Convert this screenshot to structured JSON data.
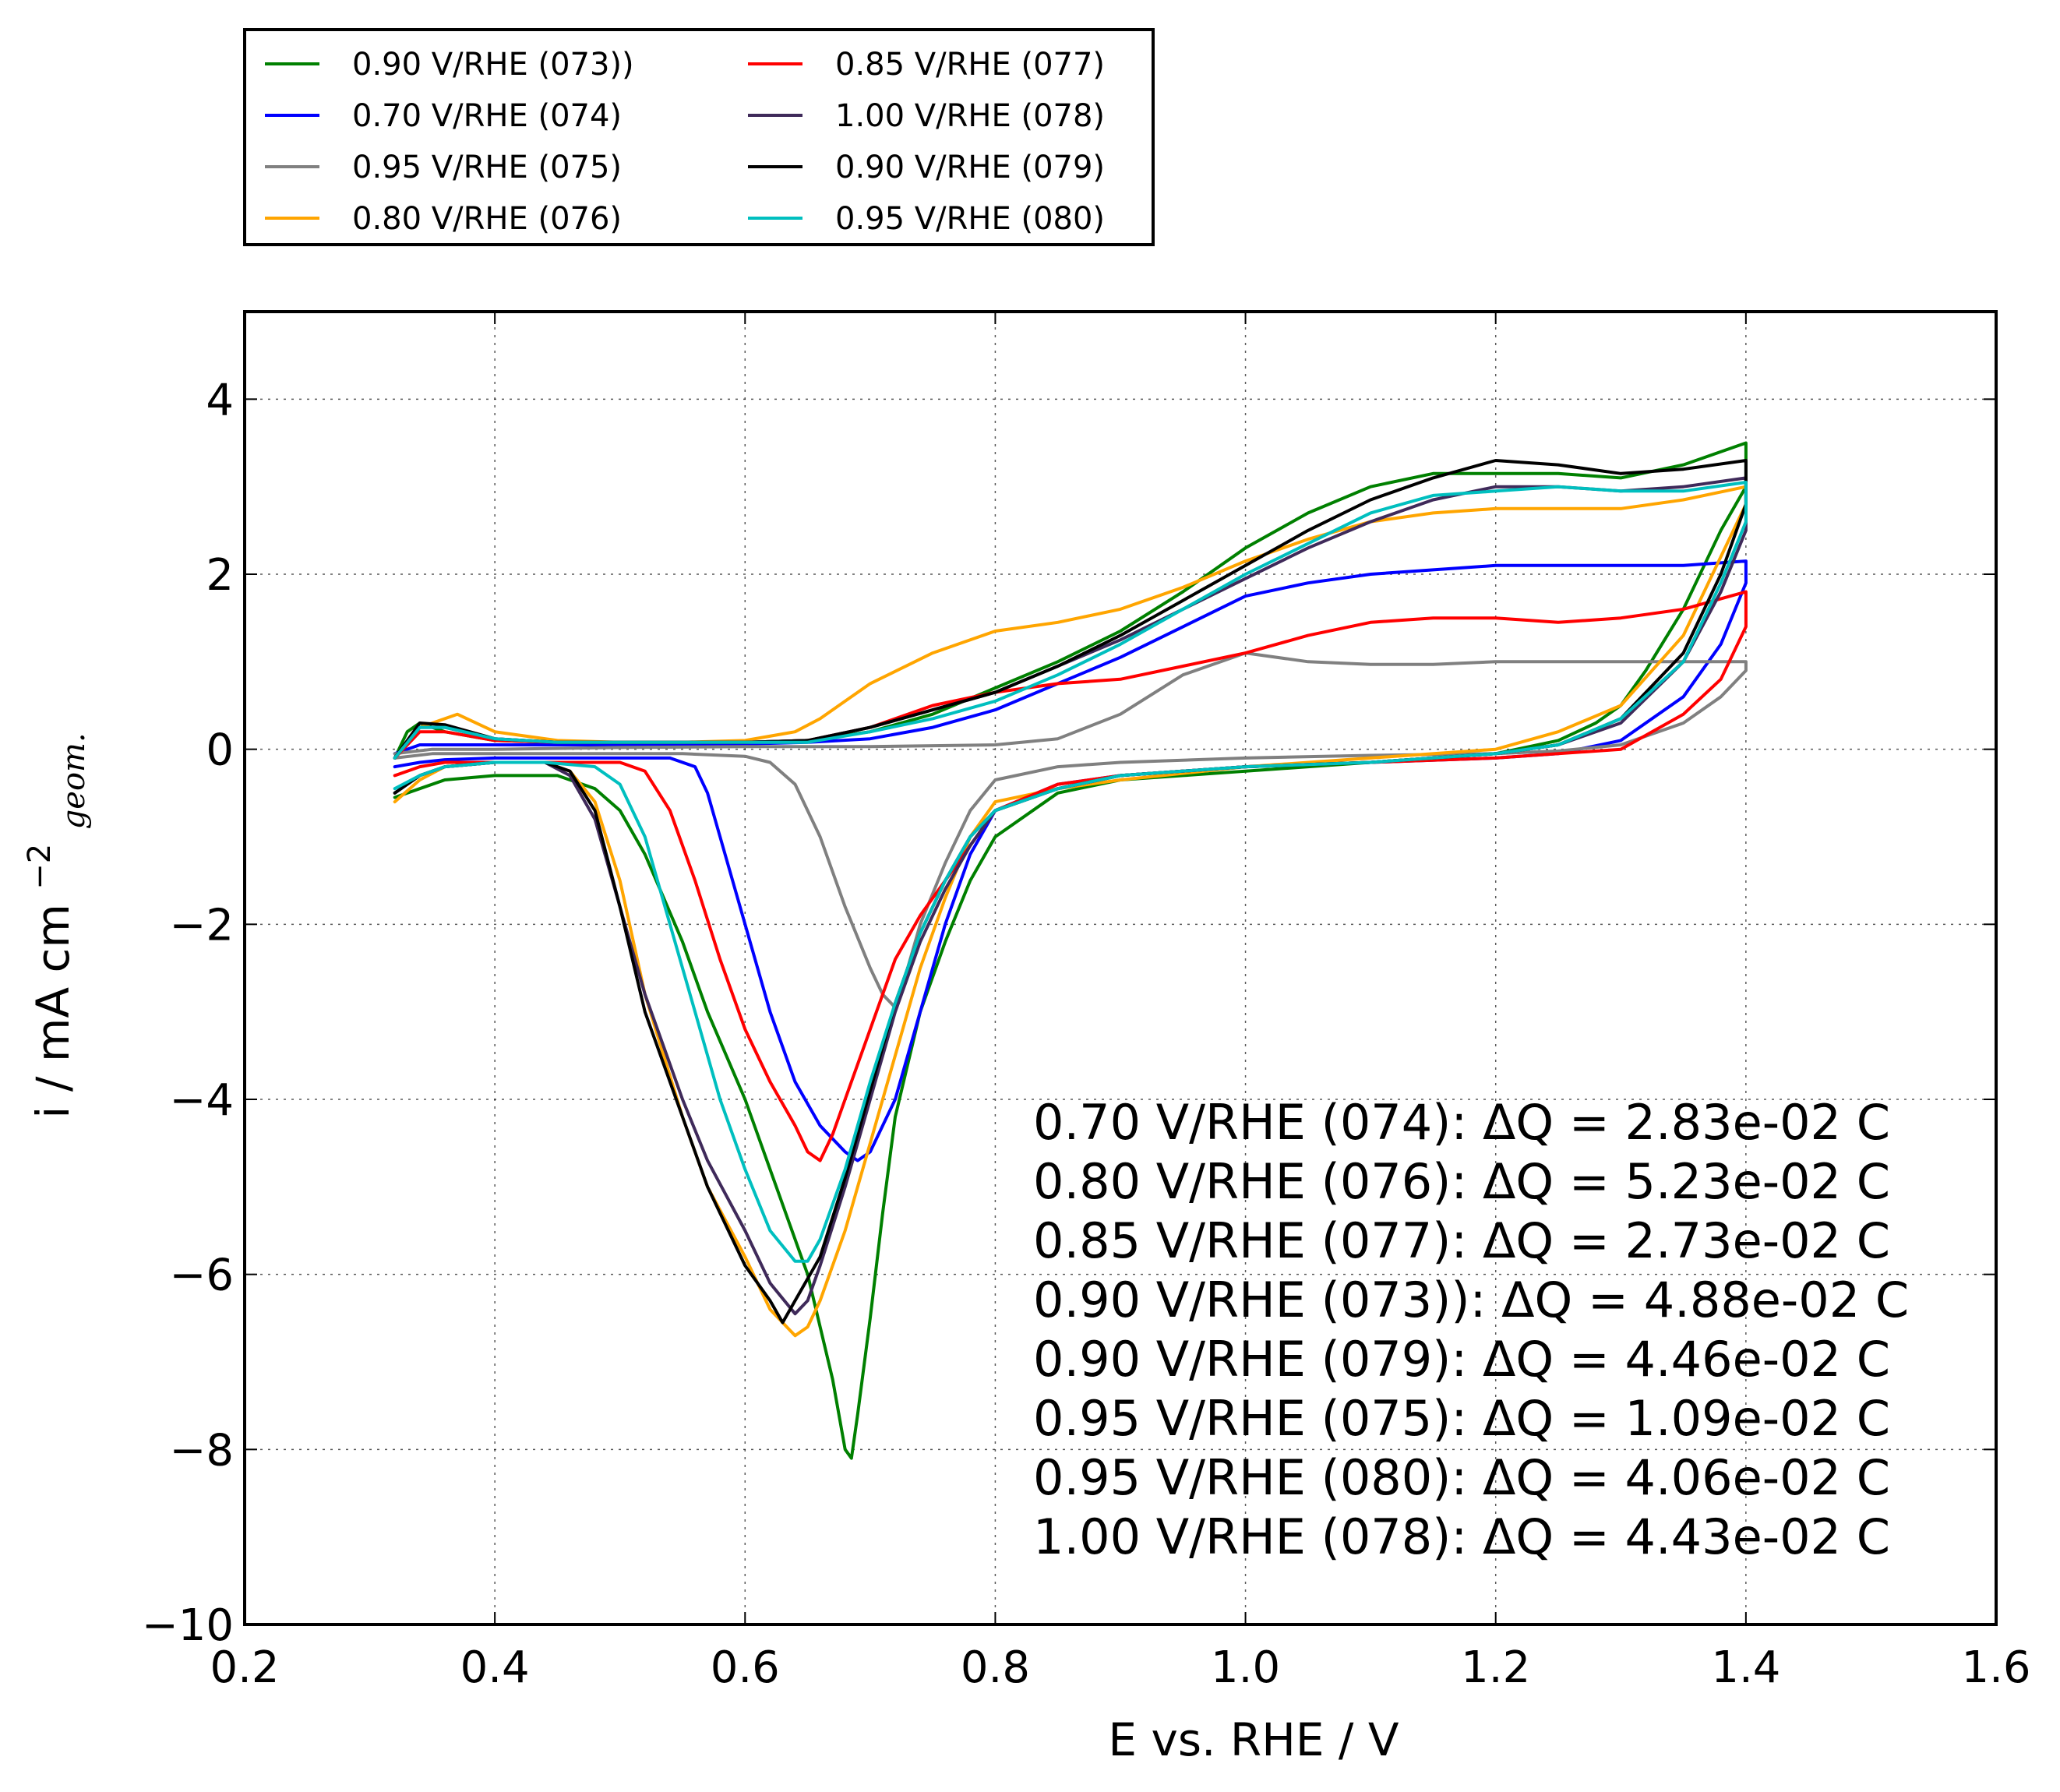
{
  "chart_data": {
    "type": "line",
    "xlabel": "E vs. RHE / V",
    "ylabel_main": "i / mA cm",
    "ylabel_exp": "−2",
    "ylabel_sub": "geom.",
    "xlim": [
      0.2,
      1.6
    ],
    "ylim": [
      -10,
      5
    ],
    "xticks": [
      0.2,
      0.4,
      0.6,
      0.8,
      1.0,
      1.2,
      1.4,
      1.6
    ],
    "xtick_labels": [
      "0.2",
      "0.4",
      "0.6",
      "0.8",
      "1.0",
      "1.2",
      "1.4",
      "1.6"
    ],
    "yticks": [
      -10,
      -8,
      -6,
      -4,
      -2,
      0,
      2,
      4
    ],
    "ytick_labels": [
      "−10",
      "−8",
      "−6",
      "−4",
      "−2",
      "0",
      "2",
      "4"
    ],
    "grid": true,
    "legend_position": "top-left, above plot",
    "series": [
      {
        "name": "0.90 V/RHE (073))",
        "color": "#008000",
        "x": [
          0.32,
          0.33,
          0.34,
          0.36,
          0.4,
          0.45,
          0.48,
          0.5,
          0.52,
          0.55,
          0.58,
          0.6,
          0.65,
          0.7,
          0.75,
          0.8,
          0.85,
          0.9,
          0.95,
          1.0,
          1.05,
          1.1,
          1.15,
          1.2,
          1.25,
          1.3,
          1.35,
          1.4,
          1.4,
          1.38,
          1.35,
          1.32,
          1.3,
          1.28,
          1.25,
          1.2,
          1.15,
          1.1,
          1.05,
          1.0,
          0.95,
          0.9,
          0.85,
          0.8,
          0.78,
          0.76,
          0.74,
          0.72,
          0.71,
          0.7,
          0.69,
          0.685,
          0.68,
          0.67,
          0.65,
          0.62,
          0.6,
          0.57,
          0.55,
          0.52,
          0.5,
          0.48,
          0.45,
          0.4,
          0.36,
          0.34,
          0.32
        ],
        "y": [
          -0.1,
          0.2,
          0.3,
          0.2,
          0.1,
          0.08,
          0.08,
          0.08,
          0.08,
          0.08,
          0.08,
          0.08,
          0.1,
          0.2,
          0.4,
          0.7,
          1.0,
          1.35,
          1.8,
          2.3,
          2.7,
          3.0,
          3.15,
          3.15,
          3.15,
          3.1,
          3.25,
          3.5,
          3.0,
          2.5,
          1.6,
          0.9,
          0.5,
          0.3,
          0.1,
          -0.05,
          -0.1,
          -0.15,
          -0.2,
          -0.25,
          -0.3,
          -0.35,
          -0.5,
          -1.0,
          -1.5,
          -2.2,
          -3.0,
          -4.2,
          -5.3,
          -6.5,
          -7.6,
          -8.1,
          -8.0,
          -7.2,
          -6.0,
          -4.8,
          -4.0,
          -3.0,
          -2.2,
          -1.2,
          -0.7,
          -0.45,
          -0.3,
          -0.3,
          -0.35,
          -0.45,
          -0.55
        ]
      },
      {
        "name": "0.70 V/RHE (074)",
        "color": "#0000ff",
        "x": [
          0.32,
          0.34,
          0.36,
          0.4,
          0.45,
          0.5,
          0.55,
          0.6,
          0.65,
          0.7,
          0.75,
          0.8,
          0.85,
          0.9,
          0.95,
          1.0,
          1.05,
          1.1,
          1.15,
          1.2,
          1.25,
          1.3,
          1.35,
          1.4,
          1.4,
          1.38,
          1.35,
          1.3,
          1.25,
          1.2,
          1.1,
          1.0,
          0.9,
          0.85,
          0.8,
          0.78,
          0.76,
          0.74,
          0.72,
          0.7,
          0.69,
          0.68,
          0.66,
          0.64,
          0.62,
          0.6,
          0.58,
          0.57,
          0.56,
          0.54,
          0.5,
          0.45,
          0.4,
          0.36,
          0.34,
          0.32
        ],
        "y": [
          -0.05,
          0.05,
          0.05,
          0.05,
          0.05,
          0.05,
          0.05,
          0.06,
          0.08,
          0.12,
          0.25,
          0.45,
          0.75,
          1.05,
          1.4,
          1.75,
          1.9,
          2.0,
          2.05,
          2.1,
          2.1,
          2.1,
          2.1,
          2.15,
          1.9,
          1.2,
          0.6,
          0.1,
          -0.05,
          -0.1,
          -0.15,
          -0.2,
          -0.3,
          -0.4,
          -0.7,
          -1.2,
          -2.0,
          -3.0,
          -4.0,
          -4.6,
          -4.7,
          -4.6,
          -4.3,
          -3.8,
          -3.0,
          -2.0,
          -1.0,
          -0.5,
          -0.2,
          -0.1,
          -0.1,
          -0.1,
          -0.1,
          -0.12,
          -0.15,
          -0.2
        ]
      },
      {
        "name": "0.95 V/RHE (075)",
        "color": "#808080",
        "x": [
          0.32,
          0.35,
          0.4,
          0.5,
          0.6,
          0.7,
          0.8,
          0.85,
          0.9,
          0.95,
          1.0,
          1.05,
          1.1,
          1.15,
          1.2,
          1.25,
          1.3,
          1.35,
          1.4,
          1.4,
          1.38,
          1.35,
          1.3,
          1.25,
          1.2,
          1.1,
          1.0,
          0.9,
          0.85,
          0.8,
          0.78,
          0.76,
          0.74,
          0.73,
          0.72,
          0.71,
          0.7,
          0.68,
          0.66,
          0.64,
          0.62,
          0.6,
          0.55,
          0.5,
          0.45,
          0.4,
          0.35,
          0.32
        ],
        "y": [
          -0.05,
          0.0,
          0.0,
          0.02,
          0.03,
          0.03,
          0.05,
          0.12,
          0.4,
          0.85,
          1.1,
          1.0,
          0.97,
          0.97,
          1.0,
          1.0,
          1.0,
          1.0,
          1.0,
          0.9,
          0.6,
          0.3,
          0.05,
          -0.02,
          -0.05,
          -0.07,
          -0.1,
          -0.15,
          -0.2,
          -0.35,
          -0.7,
          -1.3,
          -2.0,
          -2.5,
          -2.95,
          -2.8,
          -2.5,
          -1.8,
          -1.0,
          -0.4,
          -0.15,
          -0.08,
          -0.05,
          -0.05,
          -0.05,
          -0.05,
          -0.05,
          -0.1
        ]
      },
      {
        "name": "0.80 V/RHE (076)",
        "color": "#ffa500",
        "x": [
          0.32,
          0.34,
          0.37,
          0.4,
          0.45,
          0.5,
          0.55,
          0.6,
          0.64,
          0.66,
          0.68,
          0.7,
          0.75,
          0.8,
          0.85,
          0.9,
          0.95,
          1.0,
          1.05,
          1.1,
          1.15,
          1.2,
          1.25,
          1.3,
          1.35,
          1.4,
          1.4,
          1.38,
          1.35,
          1.3,
          1.25,
          1.2,
          1.1,
          1.0,
          0.9,
          0.85,
          0.8,
          0.78,
          0.76,
          0.74,
          0.72,
          0.7,
          0.68,
          0.66,
          0.65,
          0.64,
          0.62,
          0.6,
          0.57,
          0.55,
          0.52,
          0.5,
          0.48,
          0.46,
          0.44,
          0.4,
          0.36,
          0.34,
          0.32
        ],
        "y": [
          -0.1,
          0.25,
          0.4,
          0.2,
          0.1,
          0.08,
          0.08,
          0.1,
          0.2,
          0.35,
          0.55,
          0.75,
          1.1,
          1.35,
          1.45,
          1.6,
          1.85,
          2.15,
          2.4,
          2.6,
          2.7,
          2.75,
          2.75,
          2.75,
          2.85,
          3.0,
          2.8,
          2.2,
          1.3,
          0.5,
          0.2,
          0.0,
          -0.1,
          -0.2,
          -0.35,
          -0.45,
          -0.6,
          -1.0,
          -1.7,
          -2.5,
          -3.5,
          -4.5,
          -5.5,
          -6.3,
          -6.6,
          -6.7,
          -6.4,
          -5.8,
          -5.0,
          -4.2,
          -2.8,
          -1.5,
          -0.6,
          -0.25,
          -0.15,
          -0.15,
          -0.2,
          -0.35,
          -0.6
        ]
      },
      {
        "name": "0.85 V/RHE (077)",
        "color": "#ff0000",
        "x": [
          0.32,
          0.34,
          0.36,
          0.4,
          0.45,
          0.5,
          0.55,
          0.6,
          0.65,
          0.7,
          0.75,
          0.8,
          0.85,
          0.9,
          0.95,
          1.0,
          1.05,
          1.1,
          1.15,
          1.2,
          1.25,
          1.3,
          1.35,
          1.4,
          1.4,
          1.38,
          1.35,
          1.3,
          1.25,
          1.2,
          1.1,
          1.0,
          0.9,
          0.85,
          0.8,
          0.78,
          0.76,
          0.74,
          0.72,
          0.7,
          0.68,
          0.67,
          0.66,
          0.65,
          0.64,
          0.62,
          0.6,
          0.58,
          0.56,
          0.54,
          0.52,
          0.5,
          0.45,
          0.4,
          0.36,
          0.34,
          0.32
        ],
        "y": [
          -0.1,
          0.2,
          0.2,
          0.1,
          0.08,
          0.08,
          0.08,
          0.08,
          0.1,
          0.25,
          0.5,
          0.65,
          0.75,
          0.8,
          0.95,
          1.1,
          1.3,
          1.45,
          1.5,
          1.5,
          1.45,
          1.5,
          1.6,
          1.8,
          1.4,
          0.8,
          0.4,
          0.0,
          -0.05,
          -0.1,
          -0.15,
          -0.2,
          -0.3,
          -0.4,
          -0.7,
          -1.1,
          -1.5,
          -1.9,
          -2.4,
          -3.2,
          -4.0,
          -4.4,
          -4.7,
          -4.6,
          -4.3,
          -3.8,
          -3.2,
          -2.4,
          -1.5,
          -0.7,
          -0.25,
          -0.15,
          -0.15,
          -0.15,
          -0.15,
          -0.2,
          -0.3
        ]
      },
      {
        "name": "1.00 V/RHE (078)",
        "color": "#3f2a5a",
        "x": [
          0.32,
          0.34,
          0.36,
          0.4,
          0.45,
          0.5,
          0.55,
          0.6,
          0.65,
          0.7,
          0.75,
          0.8,
          0.85,
          0.9,
          0.95,
          1.0,
          1.05,
          1.1,
          1.15,
          1.2,
          1.25,
          1.3,
          1.35,
          1.4,
          1.4,
          1.38,
          1.35,
          1.3,
          1.25,
          1.2,
          1.1,
          1.0,
          0.9,
          0.85,
          0.8,
          0.78,
          0.76,
          0.74,
          0.72,
          0.7,
          0.68,
          0.66,
          0.65,
          0.64,
          0.62,
          0.6,
          0.57,
          0.55,
          0.52,
          0.5,
          0.48,
          0.46,
          0.44,
          0.4,
          0.36,
          0.34,
          0.32
        ],
        "y": [
          -0.1,
          0.25,
          0.25,
          0.12,
          0.08,
          0.08,
          0.08,
          0.08,
          0.1,
          0.25,
          0.45,
          0.65,
          0.95,
          1.25,
          1.6,
          1.95,
          2.3,
          2.6,
          2.85,
          3.0,
          3.0,
          2.95,
          3.0,
          3.1,
          2.5,
          1.8,
          1.0,
          0.3,
          0.05,
          -0.05,
          -0.15,
          -0.2,
          -0.3,
          -0.45,
          -0.7,
          -1.1,
          -1.6,
          -2.2,
          -3.0,
          -4.0,
          -5.0,
          -5.9,
          -6.3,
          -6.45,
          -6.1,
          -5.5,
          -4.7,
          -4.0,
          -2.8,
          -1.8,
          -0.8,
          -0.3,
          -0.15,
          -0.15,
          -0.2,
          -0.3,
          -0.5
        ]
      },
      {
        "name": "0.90 V/RHE (079)",
        "color": "#000000",
        "x": [
          0.32,
          0.34,
          0.36,
          0.4,
          0.45,
          0.5,
          0.55,
          0.6,
          0.65,
          0.7,
          0.75,
          0.8,
          0.85,
          0.9,
          0.95,
          1.0,
          1.05,
          1.1,
          1.15,
          1.2,
          1.25,
          1.3,
          1.35,
          1.4,
          1.4,
          1.38,
          1.35,
          1.3,
          1.25,
          1.2,
          1.1,
          1.0,
          0.9,
          0.85,
          0.8,
          0.78,
          0.76,
          0.74,
          0.72,
          0.7,
          0.68,
          0.66,
          0.64,
          0.63,
          0.62,
          0.6,
          0.57,
          0.55,
          0.52,
          0.5,
          0.48,
          0.46,
          0.44,
          0.4,
          0.36,
          0.34,
          0.32
        ],
        "y": [
          -0.1,
          0.3,
          0.28,
          0.12,
          0.08,
          0.08,
          0.08,
          0.08,
          0.1,
          0.25,
          0.45,
          0.65,
          0.95,
          1.3,
          1.7,
          2.1,
          2.5,
          2.85,
          3.1,
          3.3,
          3.25,
          3.15,
          3.2,
          3.3,
          2.8,
          2.0,
          1.1,
          0.35,
          0.05,
          -0.05,
          -0.15,
          -0.2,
          -0.3,
          -0.45,
          -0.7,
          -1.0,
          -1.5,
          -2.1,
          -2.9,
          -3.9,
          -4.9,
          -5.8,
          -6.3,
          -6.55,
          -6.3,
          -5.9,
          -5.0,
          -4.2,
          -3.0,
          -1.8,
          -0.7,
          -0.25,
          -0.15,
          -0.15,
          -0.2,
          -0.3,
          -0.5
        ]
      },
      {
        "name": "0.95 V/RHE (080)",
        "color": "#00bfbf",
        "x": [
          0.32,
          0.34,
          0.36,
          0.4,
          0.45,
          0.5,
          0.55,
          0.6,
          0.65,
          0.7,
          0.75,
          0.8,
          0.85,
          0.9,
          0.95,
          1.0,
          1.05,
          1.1,
          1.15,
          1.2,
          1.25,
          1.3,
          1.35,
          1.4,
          1.4,
          1.38,
          1.35,
          1.3,
          1.25,
          1.2,
          1.1,
          1.0,
          0.9,
          0.85,
          0.8,
          0.78,
          0.76,
          0.74,
          0.72,
          0.7,
          0.68,
          0.66,
          0.65,
          0.64,
          0.62,
          0.6,
          0.58,
          0.56,
          0.54,
          0.52,
          0.5,
          0.48,
          0.44,
          0.4,
          0.36,
          0.34,
          0.32
        ],
        "y": [
          -0.1,
          0.25,
          0.25,
          0.12,
          0.08,
          0.08,
          0.08,
          0.08,
          0.08,
          0.2,
          0.35,
          0.55,
          0.85,
          1.2,
          1.6,
          2.0,
          2.35,
          2.7,
          2.9,
          2.95,
          3.0,
          2.95,
          2.95,
          3.05,
          2.6,
          1.9,
          1.0,
          0.35,
          0.05,
          -0.05,
          -0.15,
          -0.2,
          -0.3,
          -0.45,
          -0.7,
          -1.0,
          -1.5,
          -2.1,
          -2.9,
          -3.8,
          -4.8,
          -5.6,
          -5.85,
          -5.85,
          -5.5,
          -4.8,
          -4.0,
          -3.0,
          -2.0,
          -1.0,
          -0.4,
          -0.2,
          -0.15,
          -0.15,
          -0.2,
          -0.3,
          -0.45
        ]
      }
    ],
    "annotations": [
      "0.70 V/RHE (074): ΔQ = 2.83e-02 C",
      "0.80 V/RHE (076): ΔQ = 5.23e-02 C",
      "0.85 V/RHE (077): ΔQ = 2.73e-02 C",
      "0.90 V/RHE (073)): ΔQ = 4.88e-02 C",
      "0.90 V/RHE (079): ΔQ = 4.46e-02 C",
      "0.95 V/RHE (075): ΔQ = 1.09e-02 C",
      "0.95 V/RHE (080): ΔQ = 4.06e-02 C",
      "1.00 V/RHE (078): ΔQ = 4.43e-02 C"
    ]
  }
}
